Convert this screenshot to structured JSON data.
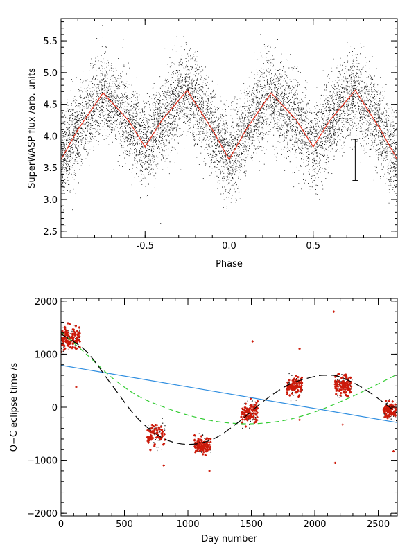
{
  "chart_data": [
    {
      "type": "scatter",
      "title": "",
      "xlabel": "Phase",
      "ylabel": "SuperWASP flux /arb. units",
      "xlim": [
        -1.0,
        1.0
      ],
      "ylim": [
        2.4,
        5.85
      ],
      "xticks": [
        "-0.5",
        "0.0",
        "0.5"
      ],
      "xtick_values": [
        -0.5,
        0.0,
        0.5
      ],
      "yticks": [
        "2.5",
        "3.0",
        "3.5",
        "4.0",
        "4.5",
        "5.0",
        "5.5"
      ],
      "ytick_values": [
        2.5,
        3.0,
        3.5,
        4.0,
        4.5,
        5.0,
        5.5
      ],
      "grid": false,
      "series": [
        {
          "kind": "points",
          "color": "#000000",
          "description_shape": "dense cloud scattered about the mean curve",
          "envelope_sigma": 0.33
        },
        {
          "kind": "line",
          "color": "#e8321e",
          "x": [
            -1.0,
            -0.9,
            -0.75,
            -0.6,
            -0.5,
            -0.4,
            -0.25,
            -0.1,
            0.0,
            0.1,
            0.25,
            0.4,
            0.5,
            0.6,
            0.75,
            0.9,
            1.0
          ],
          "y": [
            3.63,
            4.1,
            4.68,
            4.25,
            3.83,
            4.25,
            4.72,
            4.1,
            3.63,
            4.1,
            4.68,
            4.25,
            3.83,
            4.25,
            4.72,
            4.1,
            3.63
          ]
        }
      ],
      "error_bar": {
        "x": 0.75,
        "y_low": 3.3,
        "y_high": 3.95
      }
    },
    {
      "type": "scatter",
      "title": "",
      "xlabel": "Day number",
      "ylabel": "O−C eclipse time /s",
      "xlim": [
        0,
        2650
      ],
      "ylim": [
        -2050,
        2050
      ],
      "xticks": [
        "0",
        "500",
        "1000",
        "1500",
        "2000",
        "2500"
      ],
      "xtick_values": [
        0,
        500,
        1000,
        1500,
        2000,
        2500
      ],
      "yticks": [
        "−2000",
        "−1000",
        "0",
        "1000",
        "2000"
      ],
      "ytick_values": [
        -2000,
        -1000,
        0,
        1000,
        2000
      ],
      "grid": false,
      "clusters": [
        {
          "x_range": [
            0,
            150
          ],
          "y_center": 1300,
          "y_spread": 200,
          "n": 110
        },
        {
          "x_range": [
            680,
            820
          ],
          "y_center": -520,
          "y_spread": 220,
          "n": 70
        },
        {
          "x_range": [
            1050,
            1180
          ],
          "y_center": -720,
          "y_spread": 160,
          "n": 110
        },
        {
          "x_range": [
            1420,
            1550
          ],
          "y_center": -100,
          "y_spread": 200,
          "n": 90
        },
        {
          "x_range": [
            1780,
            1900
          ],
          "y_center": 380,
          "y_spread": 150,
          "n": 90
        },
        {
          "x_range": [
            2160,
            2290
          ],
          "y_center": 420,
          "y_spread": 200,
          "n": 110
        },
        {
          "x_range": [
            2540,
            2650
          ],
          "y_center": -60,
          "y_spread": 150,
          "n": 90
        }
      ],
      "outliers": [
        {
          "x": 2150,
          "y": 1800
        },
        {
          "x": 2160,
          "y": -1050
        },
        {
          "x": 1510,
          "y": 1240
        },
        {
          "x": 1880,
          "y": 1100
        },
        {
          "x": 810,
          "y": -1100
        },
        {
          "x": 1170,
          "y": -1200
        },
        {
          "x": 2620,
          "y": -830
        },
        {
          "x": 1880,
          "y": -240
        },
        {
          "x": 120,
          "y": 380
        },
        {
          "x": 2220,
          "y": -330
        }
      ],
      "point_color": "#cc1a0a",
      "lines": [
        {
          "style": "solid",
          "color": "#2f8ee0",
          "x": [
            0,
            2650
          ],
          "y": [
            790,
            -290
          ]
        },
        {
          "style": "dashed",
          "color": "#33cc33",
          "x": [
            0,
            200,
            400,
            600,
            800,
            1000,
            1200,
            1400,
            1600,
            1800,
            2000,
            2200,
            2400,
            2650
          ],
          "y": [
            1420,
            1000,
            560,
            220,
            10,
            -150,
            -260,
            -310,
            -300,
            -230,
            -90,
            100,
            320,
            620
          ]
        },
        {
          "style": "dashed",
          "color": "#000000",
          "x": [
            0,
            200,
            400,
            600,
            800,
            1000,
            1200,
            1400,
            1600,
            1800,
            2000,
            2100,
            2200,
            2400,
            2650
          ],
          "y": [
            1380,
            1050,
            420,
            -200,
            -580,
            -700,
            -600,
            -280,
            120,
            430,
            580,
            600,
            570,
            330,
            -110
          ]
        }
      ]
    }
  ]
}
